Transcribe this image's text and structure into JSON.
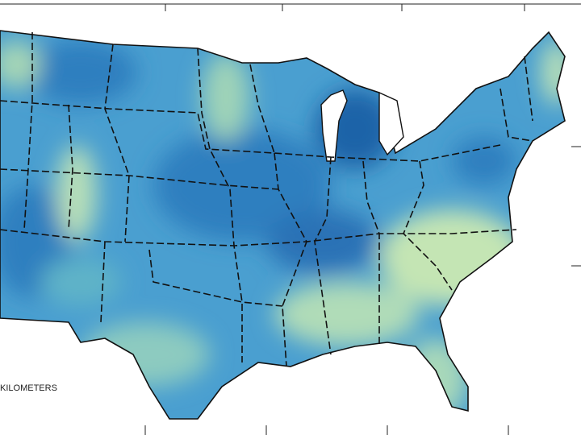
{
  "scale_label": "KILOMETERS"
}
